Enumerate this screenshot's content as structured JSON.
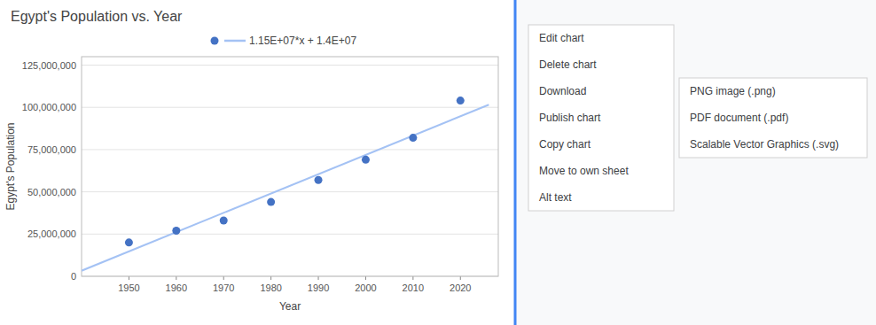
{
  "chart_data": {
    "type": "scatter",
    "title": "Egypt's Population vs. Year",
    "x_label": "Year",
    "y_label": "Egypt's Population",
    "series": [
      {
        "type": "scatter",
        "color": "#4472c4",
        "marker": "circle",
        "x": [
          1950,
          1960,
          1970,
          1980,
          1990,
          2000,
          2010,
          2020
        ],
        "values": [
          20000000,
          27000000,
          33000000,
          44000000,
          57000000,
          69000000,
          82000000,
          104000000
        ]
      },
      {
        "type": "line",
        "name": "1.15E+07*x + 1.4E+07",
        "color": "#a4c2f4",
        "line_style": "solid",
        "x": [
          1940,
          2026
        ],
        "values": [
          3300000,
          101575000
        ]
      }
    ],
    "xlim": [
      1940,
      2028
    ],
    "xticks": [
      1950,
      1960,
      1970,
      1980,
      1990,
      2000,
      2010,
      2020
    ],
    "ylim": [
      0,
      130000000
    ],
    "yticks": [
      0,
      {
        "value": 25000000,
        "label": "25,000,000"
      },
      {
        "value": 50000000,
        "label": "50,000,000"
      },
      {
        "value": 75000000,
        "label": "75,000,000"
      },
      {
        "value": 100000000,
        "label": "100,000,000"
      },
      {
        "value": 125000000,
        "label": "125,000,000"
      }
    ],
    "grid": true,
    "legend": "top",
    "annotations": [
      "Edit chart",
      "Delete chart",
      "Download",
      "Publish chart",
      "Copy chart",
      "Move to own sheet",
      "Alt text",
      "PNG image (.png)",
      "PDF document (.pdf)",
      "Scalable Vector Graphics (.svg)"
    ]
  }
}
